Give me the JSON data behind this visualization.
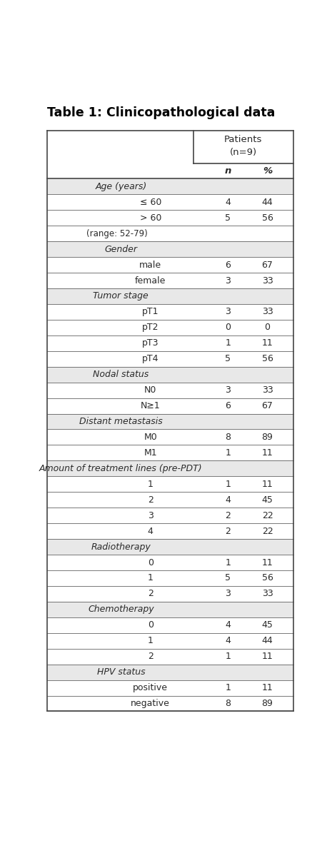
{
  "title": "Table 1: Clinicopathological data",
  "rows": [
    {
      "label": "Age (years)",
      "n": "",
      "pct": "",
      "type": "section"
    },
    {
      "label": "≤ 60",
      "n": "4",
      "pct": "44",
      "type": "data"
    },
    {
      "label": "> 60",
      "n": "5",
      "pct": "56",
      "type": "data"
    },
    {
      "label": "(range: 52-79)",
      "n": "",
      "pct": "",
      "type": "note"
    },
    {
      "label": "Gender",
      "n": "",
      "pct": "",
      "type": "section"
    },
    {
      "label": "male",
      "n": "6",
      "pct": "67",
      "type": "data"
    },
    {
      "label": "female",
      "n": "3",
      "pct": "33",
      "type": "data"
    },
    {
      "label": "Tumor stage",
      "n": "",
      "pct": "",
      "type": "section"
    },
    {
      "label": "pT1",
      "n": "3",
      "pct": "33",
      "type": "data"
    },
    {
      "label": "pT2",
      "n": "0",
      "pct": "0",
      "type": "data"
    },
    {
      "label": "pT3",
      "n": "1",
      "pct": "11",
      "type": "data"
    },
    {
      "label": "pT4",
      "n": "5",
      "pct": "56",
      "type": "data"
    },
    {
      "label": "Nodal status",
      "n": "",
      "pct": "",
      "type": "section"
    },
    {
      "label": "N0",
      "n": "3",
      "pct": "33",
      "type": "data"
    },
    {
      "label": "N≥1",
      "n": "6",
      "pct": "67",
      "type": "data"
    },
    {
      "label": "Distant metastasis",
      "n": "",
      "pct": "",
      "type": "section"
    },
    {
      "label": "M0",
      "n": "8",
      "pct": "89",
      "type": "data"
    },
    {
      "label": "M1",
      "n": "1",
      "pct": "11",
      "type": "data"
    },
    {
      "label": "Amount of treatment lines (pre-PDT)",
      "n": "",
      "pct": "",
      "type": "section"
    },
    {
      "label": "1",
      "n": "1",
      "pct": "11",
      "type": "data"
    },
    {
      "label": "2",
      "n": "4",
      "pct": "45",
      "type": "data"
    },
    {
      "label": "3",
      "n": "2",
      "pct": "22",
      "type": "data"
    },
    {
      "label": "4",
      "n": "2",
      "pct": "22",
      "type": "data"
    },
    {
      "label": "Radiotherapy",
      "n": "",
      "pct": "",
      "type": "section"
    },
    {
      "label": "0",
      "n": "1",
      "pct": "11",
      "type": "data"
    },
    {
      "label": "1",
      "n": "5",
      "pct": "56",
      "type": "data"
    },
    {
      "label": "2",
      "n": "3",
      "pct": "33",
      "type": "data"
    },
    {
      "label": "Chemotherapy",
      "n": "",
      "pct": "",
      "type": "section"
    },
    {
      "label": "0",
      "n": "4",
      "pct": "45",
      "type": "data"
    },
    {
      "label": "1",
      "n": "4",
      "pct": "44",
      "type": "data"
    },
    {
      "label": "2",
      "n": "1",
      "pct": "11",
      "type": "data"
    },
    {
      "label": "HPV status",
      "n": "",
      "pct": "",
      "type": "section"
    },
    {
      "label": "positive",
      "n": "1",
      "pct": "11",
      "type": "data"
    },
    {
      "label": "negative",
      "n": "8",
      "pct": "89",
      "type": "data"
    }
  ],
  "section_bg": "#e8e8e8",
  "data_bg": "#ffffff",
  "border_color": "#444444",
  "text_color": "#2a2a2a",
  "title_color": "#000000",
  "font_size": 9.0,
  "title_font_size": 12.5
}
